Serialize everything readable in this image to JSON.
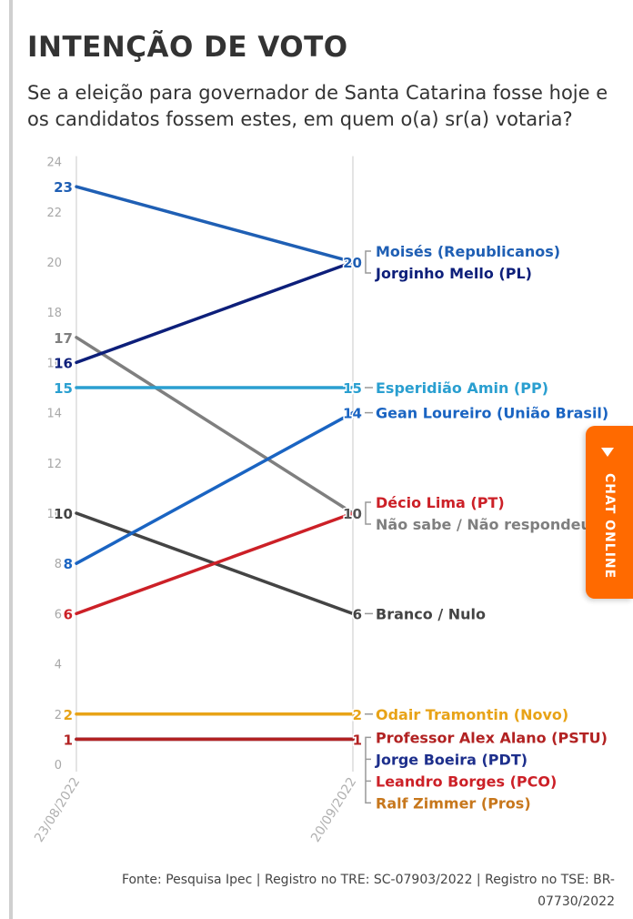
{
  "header": {
    "title": "INTENÇÃO DE VOTO",
    "subtitle": "Se a eleição para governador de Santa Catarina fosse hoje e os candidatos fossem estes, em quem o(a) sr(a) votaria?"
  },
  "footer": {
    "source": "Fonte: Pesquisa Ipec | Registro no TRE: SC-07903/2022 | Registro no TSE: BR-07730/2022"
  },
  "chat": {
    "label": "CHAT ONLINE",
    "color": "#ff6a00"
  },
  "chart_data": {
    "type": "line",
    "title": "INTENÇÃO DE VOTO",
    "x": [
      "23/08/2022",
      "20/09/2022"
    ],
    "yticks": [
      0,
      2,
      4,
      6,
      8,
      10,
      12,
      14,
      16,
      18,
      20,
      22,
      24
    ],
    "ylim": [
      0,
      24
    ],
    "grid": false,
    "series": [
      {
        "name": "Moisés (Republicanos)",
        "values": [
          23,
          20
        ],
        "color": "#1f5fb4"
      },
      {
        "name": "Jorginho Mello (PL)",
        "values": [
          16,
          20
        ],
        "color": "#0d1f7a"
      },
      {
        "name": "Esperidião Amin (PP)",
        "values": [
          15,
          15
        ],
        "color": "#2a9fd0"
      },
      {
        "name": "Gean Loureiro (União Brasil)",
        "values": [
          8,
          14
        ],
        "color": "#1a64c2"
      },
      {
        "name": "Décio Lima (PT)",
        "values": [
          6,
          10
        ],
        "color": "#cc2027"
      },
      {
        "name": "Não sabe / Não respondeu",
        "values": [
          17,
          10
        ],
        "color": "#7f7f7f"
      },
      {
        "name": "Branco / Nulo",
        "values": [
          10,
          6
        ],
        "color": "#444444"
      },
      {
        "name": "Odair Tramontin (Novo)",
        "values": [
          2,
          2
        ],
        "color": "#e8a317"
      },
      {
        "name": "Professor Alex Alano (PSTU)",
        "values": [
          1,
          1
        ],
        "color": "#b22222"
      },
      {
        "name": "Jorge Boeira (PDT)",
        "values": [
          1,
          1
        ],
        "color": "#1d2f8c"
      },
      {
        "name": "Leandro Borges (PCO)",
        "values": [
          1,
          1
        ],
        "color": "#cc2027"
      },
      {
        "name": "Ralf Zimmer (Pros)",
        "values": [
          1,
          1
        ],
        "color": "#c7771c"
      }
    ],
    "right_labels": [
      {
        "names": [
          "Moisés (Republicanos)",
          "Jorginho Mello (PL)"
        ],
        "value": 20
      },
      {
        "names": [
          "Esperidião Amin (PP)"
        ],
        "value": 15
      },
      {
        "names": [
          "Gean Loureiro (União Brasil)"
        ],
        "value": 14
      },
      {
        "names": [
          "Décio Lima (PT)",
          "Não sabe / Não respondeu"
        ],
        "value": 10
      },
      {
        "names": [
          "Branco / Nulo"
        ],
        "value": 6
      },
      {
        "names": [
          "Odair Tramontin (Novo)"
        ],
        "value": 2
      },
      {
        "names": [
          "Professor Alex Alano (PSTU)",
          "Jorge Boeira (PDT)",
          "Leandro Borges (PCO)",
          "Ralf Zimmer (Pros)"
        ],
        "value": 1
      }
    ]
  }
}
